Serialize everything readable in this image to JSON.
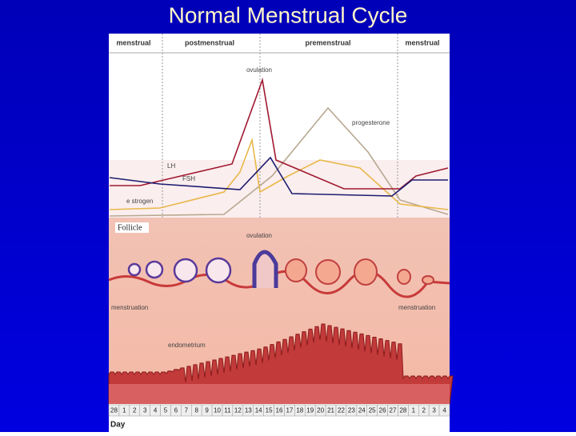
{
  "title": "Normal Menstrual Cycle",
  "phases": [
    "menstrual",
    "postmenstrual",
    "premenstrual",
    "menstrual"
  ],
  "hormones": {
    "ovulation": "ovulation",
    "progesterone": "progesterone",
    "lh": "LH",
    "fsh": "FSH",
    "estrogen": "e strogen"
  },
  "illustration": {
    "follicle": "Follicle",
    "ovulation": "ovulation",
    "menstruation_left": "menstruation",
    "menstruation_right": "menstruation",
    "endometrium": "endometrium"
  },
  "days": [
    28,
    1,
    2,
    3,
    4,
    5,
    6,
    7,
    8,
    9,
    10,
    11,
    12,
    13,
    14,
    15,
    16,
    17,
    18,
    19,
    20,
    21,
    22,
    23,
    24,
    25,
    26,
    27,
    28,
    1,
    2,
    3,
    4
  ],
  "axis_label": "Day"
}
